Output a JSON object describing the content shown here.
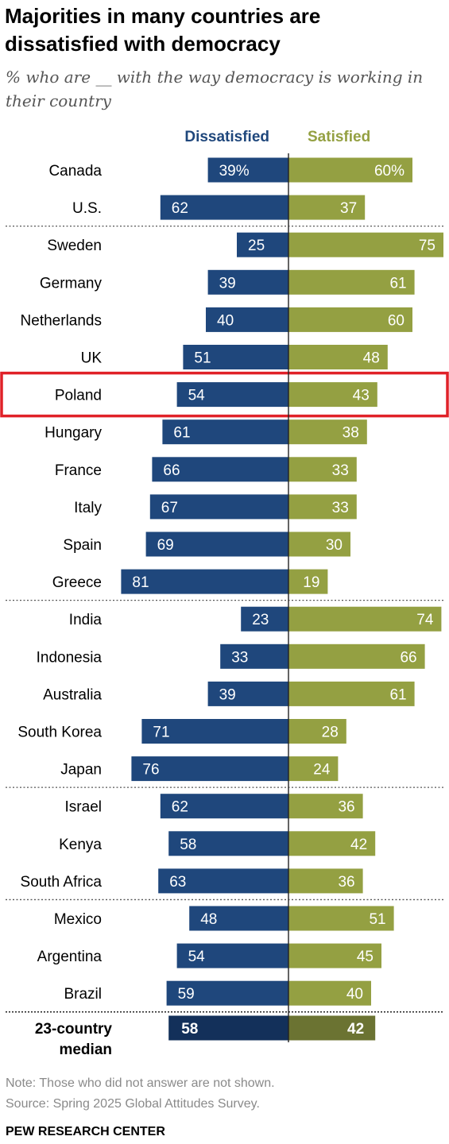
{
  "title_lines": [
    "Majorities in many countries are",
    "dissatisfied with democracy"
  ],
  "subtitle_lines": [
    "% who are __ with the way democracy is working in",
    "their country"
  ],
  "chart_data": {
    "type": "bar",
    "orientation": "diverging-horizontal",
    "series": [
      {
        "name": "Dissatisfied",
        "color": "#1f477c"
      },
      {
        "name": "Satisfied",
        "color": "#94a042"
      }
    ],
    "rows": [
      {
        "label": "Canada",
        "dissatisfied": 39,
        "satisfied": 60,
        "dissatisfied_label": "39%",
        "satisfied_label": "60%"
      },
      {
        "label": "U.S.",
        "dissatisfied": 62,
        "satisfied": 37,
        "dissatisfied_label": "62",
        "satisfied_label": "37"
      },
      {
        "label": "Sweden",
        "dissatisfied": 25,
        "satisfied": 75,
        "dissatisfied_label": "25",
        "satisfied_label": "75"
      },
      {
        "label": "Germany",
        "dissatisfied": 39,
        "satisfied": 61,
        "dissatisfied_label": "39",
        "satisfied_label": "61"
      },
      {
        "label": "Netherlands",
        "dissatisfied": 40,
        "satisfied": 60,
        "dissatisfied_label": "40",
        "satisfied_label": "60"
      },
      {
        "label": "UK",
        "dissatisfied": 51,
        "satisfied": 48,
        "dissatisfied_label": "51",
        "satisfied_label": "48"
      },
      {
        "label": "Poland",
        "dissatisfied": 54,
        "satisfied": 43,
        "dissatisfied_label": "54",
        "satisfied_label": "43",
        "highlighted": true
      },
      {
        "label": "Hungary",
        "dissatisfied": 61,
        "satisfied": 38,
        "dissatisfied_label": "61",
        "satisfied_label": "38"
      },
      {
        "label": "France",
        "dissatisfied": 66,
        "satisfied": 33,
        "dissatisfied_label": "66",
        "satisfied_label": "33"
      },
      {
        "label": "Italy",
        "dissatisfied": 67,
        "satisfied": 33,
        "dissatisfied_label": "67",
        "satisfied_label": "33"
      },
      {
        "label": "Spain",
        "dissatisfied": 69,
        "satisfied": 30,
        "dissatisfied_label": "69",
        "satisfied_label": "30"
      },
      {
        "label": "Greece",
        "dissatisfied": 81,
        "satisfied": 19,
        "dissatisfied_label": "81",
        "satisfied_label": "19"
      },
      {
        "label": "India",
        "dissatisfied": 23,
        "satisfied": 74,
        "dissatisfied_label": "23",
        "satisfied_label": "74"
      },
      {
        "label": "Indonesia",
        "dissatisfied": 33,
        "satisfied": 66,
        "dissatisfied_label": "33",
        "satisfied_label": "66"
      },
      {
        "label": "Australia",
        "dissatisfied": 39,
        "satisfied": 61,
        "dissatisfied_label": "39",
        "satisfied_label": "61"
      },
      {
        "label": "South Korea",
        "dissatisfied": 71,
        "satisfied": 28,
        "dissatisfied_label": "71",
        "satisfied_label": "28"
      },
      {
        "label": "Japan",
        "dissatisfied": 76,
        "satisfied": 24,
        "dissatisfied_label": "76",
        "satisfied_label": "24"
      },
      {
        "label": "Israel",
        "dissatisfied": 62,
        "satisfied": 36,
        "dissatisfied_label": "62",
        "satisfied_label": "36"
      },
      {
        "label": "Kenya",
        "dissatisfied": 58,
        "satisfied": 42,
        "dissatisfied_label": "58",
        "satisfied_label": "42"
      },
      {
        "label": "South Africa",
        "dissatisfied": 63,
        "satisfied": 36,
        "dissatisfied_label": "63",
        "satisfied_label": "36"
      },
      {
        "label": "Mexico",
        "dissatisfied": 48,
        "satisfied": 51,
        "dissatisfied_label": "48",
        "satisfied_label": "51"
      },
      {
        "label": "Argentina",
        "dissatisfied": 54,
        "satisfied": 45,
        "dissatisfied_label": "54",
        "satisfied_label": "45"
      },
      {
        "label": "Brazil",
        "dissatisfied": 59,
        "satisfied": 40,
        "dissatisfied_label": "59",
        "satisfied_label": "40"
      }
    ],
    "median": {
      "label_lines": [
        "23-country",
        "median"
      ],
      "dissatisfied": 58,
      "satisfied": 42,
      "dissatisfied_label": "58",
      "satisfied_label": "42",
      "dissatisfied_color": "#13305a",
      "satisfied_color": "#6b7332"
    },
    "group_separators_after": [
      "U.S.",
      "Greece",
      "Japan",
      "South Africa",
      "Brazil"
    ],
    "highlight_color": "#e02128"
  },
  "footer": {
    "note": "Note: Those who did not answer are not shown.",
    "source": "Source: Spring 2025 Global Attitudes Survey.",
    "brand": "PEW RESEARCH CENTER"
  }
}
